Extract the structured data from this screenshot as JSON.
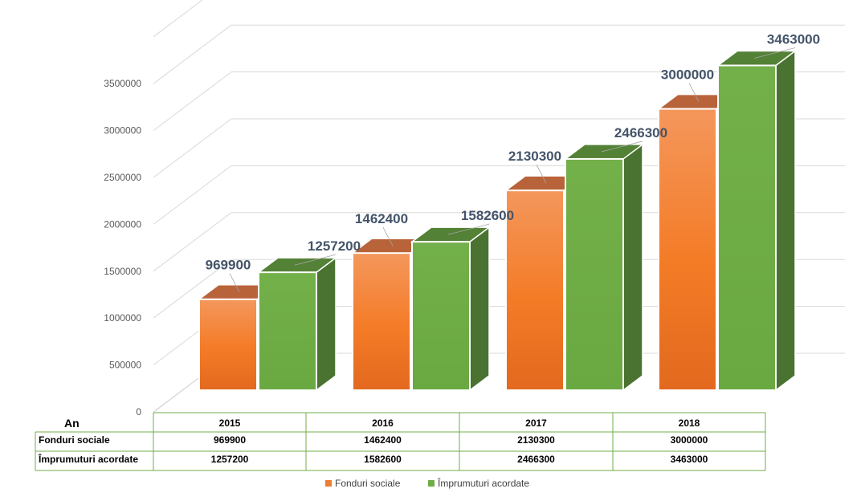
{
  "chart_data": {
    "type": "bar",
    "style": "3d-clustered-column",
    "axis_title_x": "An",
    "categories": [
      "2015",
      "2016",
      "2017",
      "2018"
    ],
    "ylim": [
      0,
      3500000
    ],
    "yticks": [
      "0",
      "500000",
      "1000000",
      "1500000",
      "2000000",
      "2500000",
      "3000000",
      "3500000"
    ],
    "grid": true,
    "legend_position": "bottom",
    "data_table": true,
    "series": [
      {
        "name": "Fonduri sociale",
        "color": "#ed7d31",
        "values": [
          969900,
          1462400,
          2130300,
          3000000
        ],
        "labels": [
          "969900",
          "1462400",
          "2130300",
          "3000000"
        ]
      },
      {
        "name": "Împrumuturi acordate",
        "color": "#70ad47",
        "values": [
          1257200,
          1582600,
          2466300,
          3463000
        ],
        "labels": [
          "1257200",
          "1582600",
          "2466300",
          "3463000"
        ]
      }
    ]
  }
}
